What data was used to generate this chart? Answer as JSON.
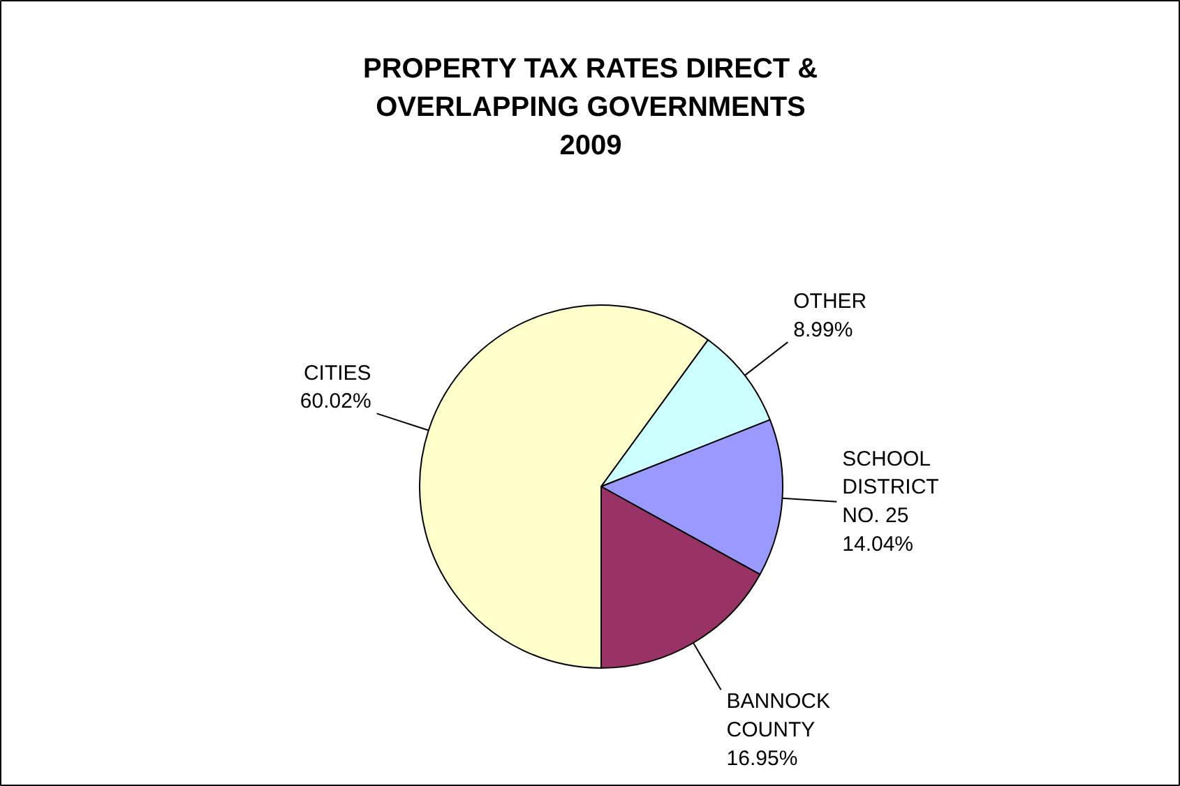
{
  "chart_data": {
    "type": "pie",
    "title": "PROPERTY TAX RATES DIRECT &\nOVERLAPPING GOVERNMENTS\n2009",
    "categories": [
      "CITIES",
      "OTHER",
      "SCHOOL\nDISTRICT\nNO. 25",
      "BANNOCK\nCOUNTY"
    ],
    "values": [
      60.02,
      8.99,
      14.04,
      16.95
    ],
    "colors": [
      "#ffffcc",
      "#ccffff",
      "#9999ff",
      "#993366"
    ],
    "value_labels": [
      "60.02%",
      "8.99%",
      "14.04%",
      "16.95%"
    ]
  }
}
